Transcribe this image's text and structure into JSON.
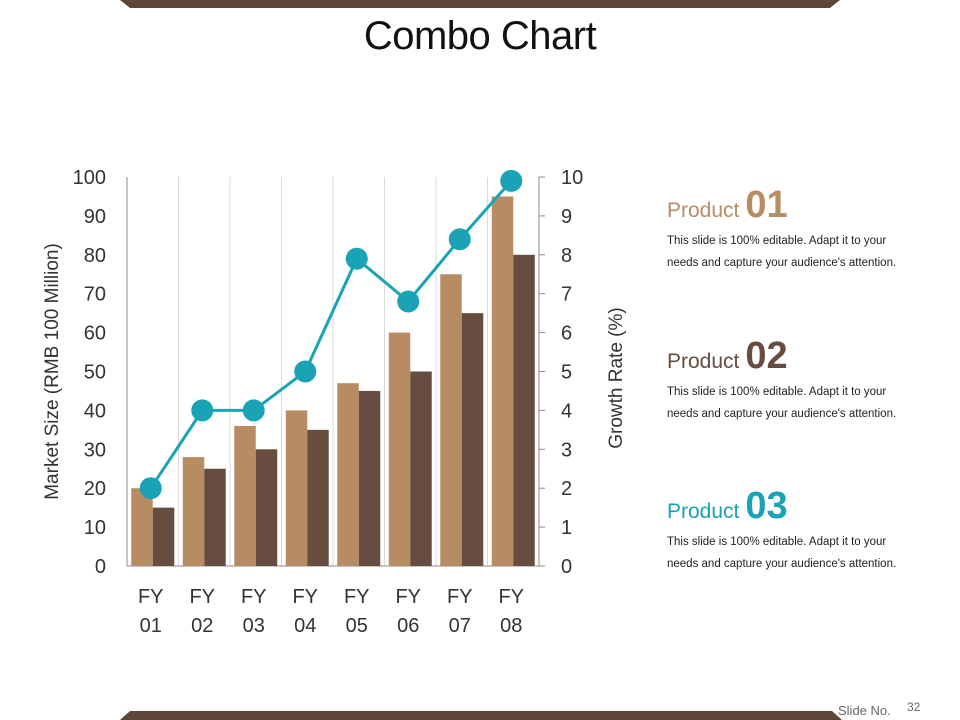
{
  "title": "Combo Chart",
  "colors": {
    "bar_light": "#b88c63",
    "bar_dark": "#664d40",
    "line": "#1aa3b5",
    "frame": "#5e4639",
    "product_01": "#b88c63",
    "product_02": "#664d40",
    "product_03": "#1aa3b5"
  },
  "chart_data": {
    "type": "bar",
    "categories": [
      "FY 01",
      "FY 02",
      "FY 03",
      "FY 04",
      "FY 05",
      "FY 06",
      "FY 07",
      "FY 08"
    ],
    "category_lines": [
      [
        "FY",
        "01"
      ],
      [
        "FY",
        "02"
      ],
      [
        "FY",
        "03"
      ],
      [
        "FY",
        "04"
      ],
      [
        "FY",
        "05"
      ],
      [
        "FY",
        "06"
      ],
      [
        "FY",
        "07"
      ],
      [
        "FY",
        "08"
      ]
    ],
    "series": [
      {
        "values": [
          20,
          28,
          36,
          40,
          47,
          60,
          75,
          95
        ],
        "color": "#b88c63",
        "axis": "left",
        "kind": "bar"
      },
      {
        "values": [
          15,
          25,
          30,
          35,
          45,
          50,
          65,
          80
        ],
        "color": "#664d40",
        "axis": "left",
        "kind": "bar"
      },
      {
        "values": [
          2,
          4,
          4,
          5,
          7.9,
          6.8,
          8.4,
          9.9
        ],
        "color": "#1aa3b5",
        "axis": "right",
        "kind": "line"
      }
    ],
    "ylabel": "Market Size (RMB 100 Million)",
    "y2label": "Growth Rate (%)",
    "ylim": [
      0,
      100
    ],
    "y2lim": [
      0,
      10
    ],
    "yticks": [
      "0",
      "10",
      "20",
      "30",
      "40",
      "50",
      "60",
      "70",
      "80",
      "90",
      "100"
    ],
    "y2ticks": [
      "0",
      "1",
      "2",
      "3",
      "4",
      "5",
      "6",
      "7",
      "8",
      "9",
      "10"
    ],
    "grid": "vertical"
  },
  "products": [
    {
      "word": "Product",
      "num": "01",
      "desc": "This slide is 100% editable. Adapt it to your needs and capture your audience's attention."
    },
    {
      "word": "Product",
      "num": "02",
      "desc": "This slide is 100% editable. Adapt it to your needs and capture your audience's attention."
    },
    {
      "word": "Product",
      "num": "03",
      "desc": "This slide is 100% editable. Adapt it to your needs and capture your audience's attention."
    }
  ],
  "footer": {
    "slide_label": "Slide No.",
    "slide_number": "32"
  }
}
